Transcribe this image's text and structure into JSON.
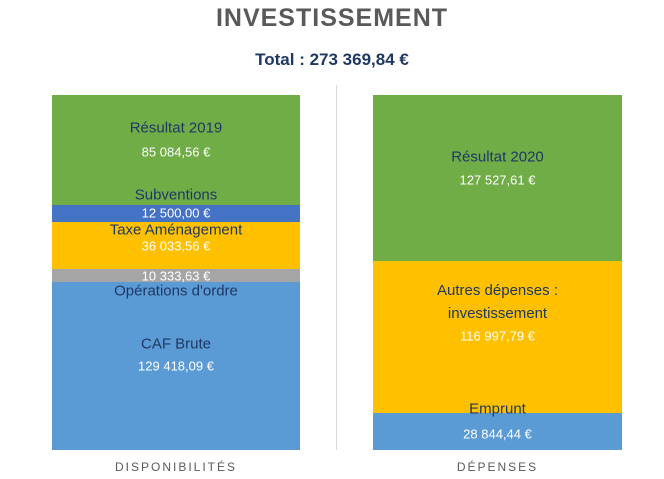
{
  "chart_data": {
    "type": "stacked_bar",
    "title": "INVESTISSEMENT",
    "subtitle": "Total : 273 369,84 €",
    "categories": [
      "DISPONIBILITÉS",
      "DÉPENSES"
    ],
    "ylim": [
      0,
      273369.84
    ],
    "series": [
      {
        "name": "CAF Brute",
        "color": "#5b9bd5",
        "values": [
          129418.09,
          null
        ],
        "value_labels": [
          "129 418,09 €",
          null
        ]
      },
      {
        "name": "Opérations d'ordre",
        "color": "#a5a5a5",
        "values": [
          10333.63,
          null
        ],
        "value_labels": [
          "10 333,63 €",
          null
        ]
      },
      {
        "name": "Taxe Aménagement",
        "color": "#ffc000",
        "values": [
          36033.56,
          null
        ],
        "value_labels": [
          "36 033,56 €",
          null
        ]
      },
      {
        "name": "Subventions",
        "color": "#4472c4",
        "values": [
          12500.0,
          null
        ],
        "value_labels": [
          "12 500,00 €",
          null
        ]
      },
      {
        "name": "Résultat 2019",
        "color": "#70ad47",
        "values": [
          85084.56,
          null
        ],
        "value_labels": [
          "85 084,56 €",
          null
        ]
      },
      {
        "name": "Emprunt",
        "color": "#5b9bd5",
        "values": [
          null,
          28844.44
        ],
        "value_labels": [
          null,
          "28 844,44 €"
        ]
      },
      {
        "name": "Autres dépenses : investissement",
        "color": "#ffc000",
        "values": [
          null,
          116997.79
        ],
        "value_labels": [
          null,
          "116 997,79 €"
        ]
      },
      {
        "name": "Résultat 2020",
        "color": "#70ad47",
        "values": [
          null,
          127527.61
        ],
        "value_labels": [
          null,
          "127 527,61 €"
        ]
      }
    ]
  }
}
